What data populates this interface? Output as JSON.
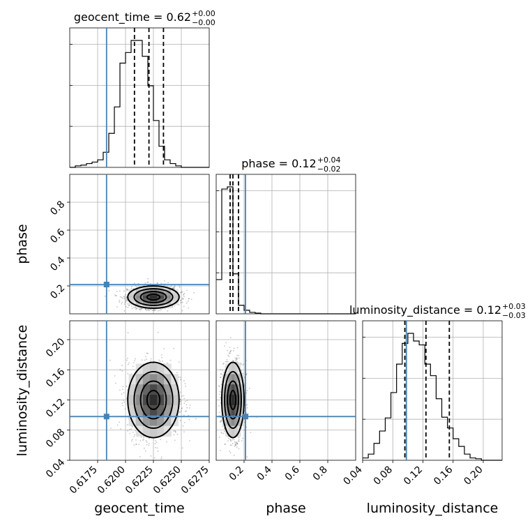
{
  "chart_data": {
    "type": "corner",
    "parameters": [
      "geocent_time",
      "phase",
      "luminosity_distance"
    ],
    "truth_color": "#4682b4",
    "truth": {
      "geocent_time": 0.6183,
      "phase": 0.21,
      "luminosity_distance": 0.098
    },
    "ranges": {
      "geocent_time": [
        0.615,
        0.6275
      ],
      "phase": [
        0.0,
        1.0
      ],
      "luminosity_distance": [
        0.04,
        0.225
      ]
    },
    "ticks": {
      "geocent_time": [
        "0.6175",
        "0.6200",
        "0.6225",
        "0.6250",
        "0.6275"
      ],
      "phase": [
        "0.2",
        "0.4",
        "0.6",
        "0.8"
      ],
      "luminosity_distance": [
        "0.04",
        "0.08",
        "0.12",
        "0.16",
        "0.20"
      ]
    },
    "titles": {
      "geocent_time": {
        "name": "geocent_time",
        "median": "0.62",
        "plus": "+0.00",
        "minus": "−0.00"
      },
      "phase": {
        "name": "phase",
        "median": "0.12",
        "plus": "+0.04",
        "minus": "−0.02"
      },
      "luminosity_distance": {
        "name": "luminosity_distance",
        "median": "0.12",
        "plus": "+0.03",
        "minus": "−0.03"
      }
    },
    "quantiles": {
      "geocent_time": [
        0.6208,
        0.6221,
        0.6234
      ],
      "phase": [
        0.1,
        0.12,
        0.16
      ],
      "luminosity_distance": [
        0.096,
        0.124,
        0.155
      ]
    },
    "hist_geocent_time": {
      "edges_start": 0.615,
      "bin_width": 0.0005,
      "counts": [
        0,
        2,
        3,
        5,
        7,
        10,
        20,
        45,
        80,
        138,
        152,
        168,
        168,
        147,
        108,
        62,
        28,
        10,
        5,
        2,
        0,
        0,
        0,
        0,
        0
      ]
    },
    "hist_phase": {
      "edges_start": 0.0,
      "bin_width": 0.04,
      "counts": [
        48,
        175,
        178,
        56,
        12,
        5,
        2,
        1,
        0,
        0,
        0,
        0,
        0,
        0,
        0,
        0,
        0,
        0,
        0,
        0,
        0,
        0,
        0,
        0,
        0
      ]
    },
    "hist_luminosity_distance": {
      "edges_start": 0.04,
      "bin_width": 0.0075,
      "counts": [
        3,
        8,
        22,
        38,
        55,
        88,
        125,
        152,
        165,
        155,
        150,
        125,
        110,
        80,
        56,
        42,
        28,
        18,
        8,
        3,
        2,
        0,
        0,
        0,
        0
      ]
    },
    "scatter_center": {
      "geocent_time": 0.6225,
      "phase": 0.12,
      "luminosity_distance": 0.12
    },
    "scatter_sigma": {
      "geocent_time": 0.00115,
      "phase": 0.04,
      "luminosity_distance": 0.025
    }
  }
}
